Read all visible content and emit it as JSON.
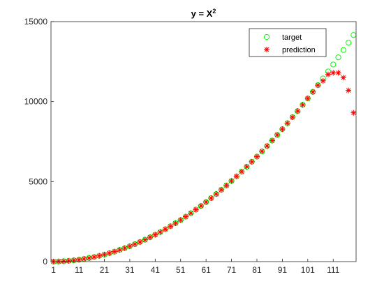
{
  "chart_data": {
    "type": "scatter",
    "title": {
      "base": "y = X",
      "superscript": "2"
    },
    "xlabel": "",
    "ylabel": "",
    "xlim": [
      0,
      120
    ],
    "ylim": [
      0,
      15000
    ],
    "xticks": [
      1,
      11,
      21,
      31,
      41,
      51,
      61,
      71,
      81,
      91,
      101,
      111
    ],
    "yticks": [
      0,
      5000,
      10000,
      15000
    ],
    "grid": false,
    "legend_location": "top-right",
    "x_start": 1,
    "x_step": 2,
    "series": [
      {
        "name": "target",
        "marker": "circle",
        "color": "#00ff00",
        "values": [
          1,
          9,
          25,
          49,
          81,
          121,
          169,
          225,
          289,
          361,
          441,
          529,
          625,
          729,
          841,
          961,
          1089,
          1225,
          1369,
          1521,
          1681,
          1849,
          2025,
          2209,
          2401,
          2601,
          2809,
          3025,
          3249,
          3481,
          3721,
          3969,
          4225,
          4489,
          4761,
          5041,
          5329,
          5625,
          5929,
          6241,
          6561,
          6889,
          7225,
          7569,
          7921,
          8281,
          8649,
          9025,
          9409,
          9801,
          10201,
          10609,
          11025,
          11449,
          11881,
          12321,
          12769,
          13225,
          13689,
          14161
        ]
      },
      {
        "name": "prediction",
        "marker": "asterisk",
        "color": "#ff0000",
        "values": [
          1,
          9,
          25,
          49,
          81,
          121,
          169,
          225,
          289,
          361,
          441,
          529,
          625,
          729,
          841,
          961,
          1089,
          1225,
          1369,
          1521,
          1681,
          1849,
          2025,
          2209,
          2401,
          2601,
          2809,
          3025,
          3249,
          3481,
          3721,
          3969,
          4225,
          4489,
          4761,
          5041,
          5329,
          5625,
          5929,
          6241,
          6561,
          6889,
          7225,
          7569,
          7921,
          8281,
          8649,
          9025,
          9409,
          9801,
          10201,
          10609,
          11025,
          11300,
          11700,
          11800,
          11800,
          11500,
          10700,
          9300
        ]
      }
    ]
  }
}
